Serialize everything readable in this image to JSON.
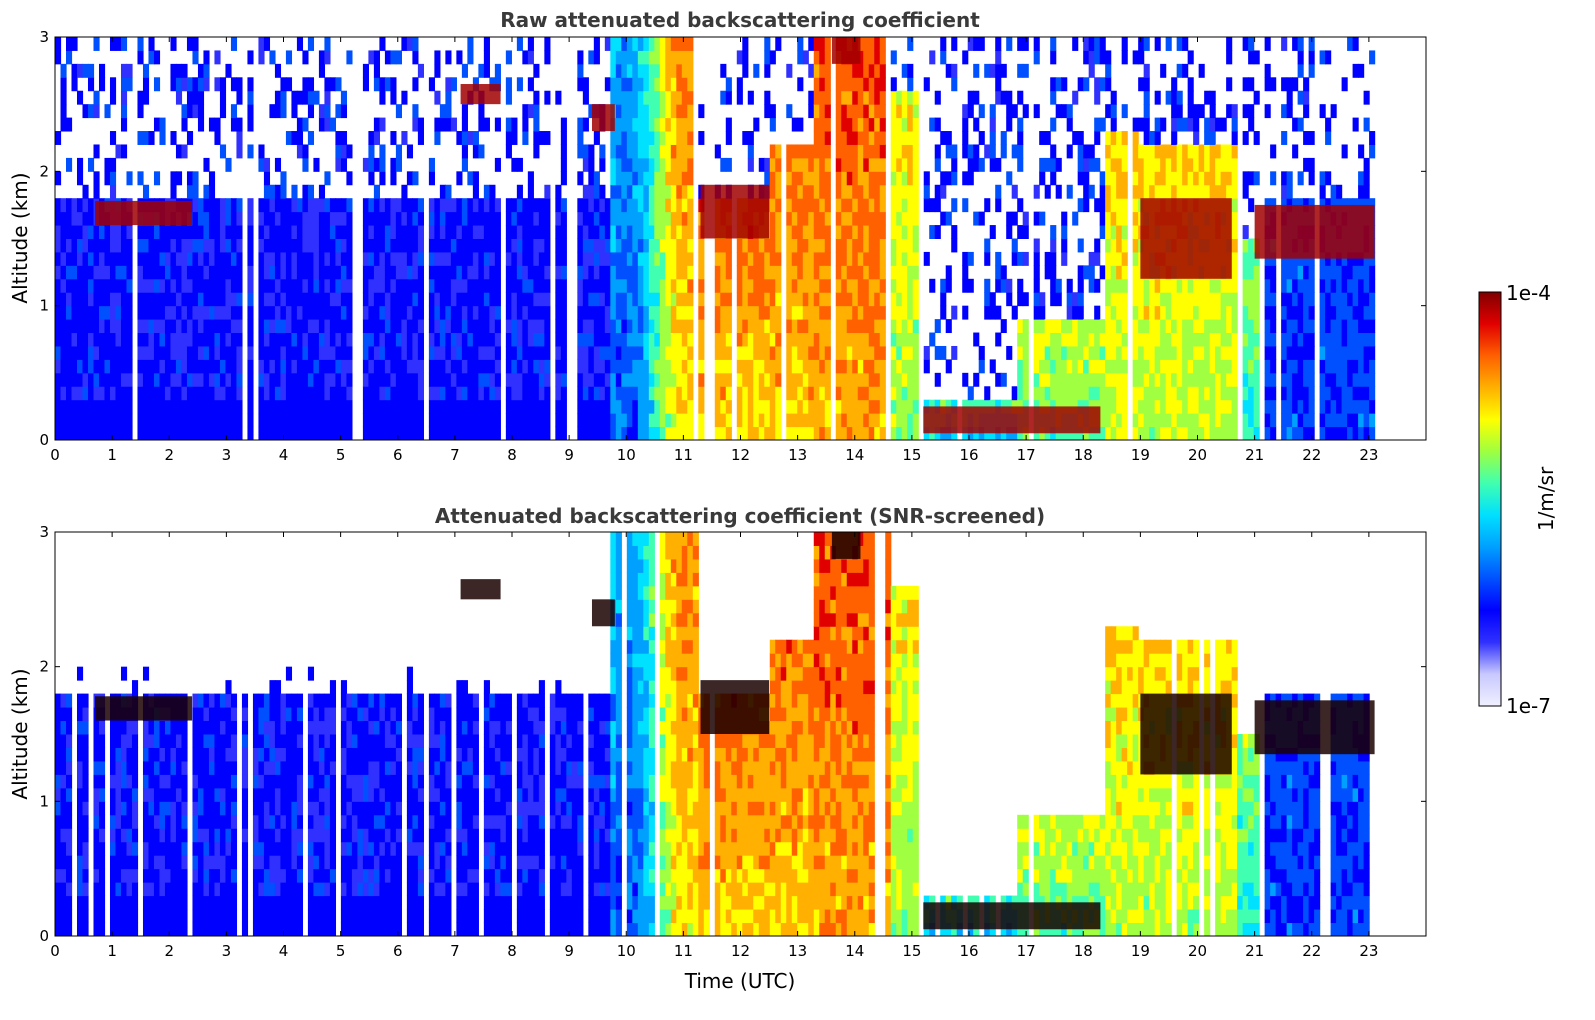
{
  "chart_data": [
    {
      "type": "heatmap",
      "title": "Raw attenuated backscattering coefficient",
      "xlabel": "",
      "ylabel": "Altitude (km)",
      "xlim": [
        0,
        24
      ],
      "ylim": [
        0,
        3
      ],
      "xticks": [
        "0",
        "1",
        "2",
        "3",
        "4",
        "5",
        "6",
        "7",
        "8",
        "9",
        "10",
        "11",
        "12",
        "13",
        "14",
        "15",
        "16",
        "17",
        "18",
        "19",
        "20",
        "21",
        "22",
        "23"
      ],
      "yticks": [
        "0",
        "1",
        "2",
        "3"
      ],
      "data_end_hour": 23.1,
      "screened": false,
      "cloud_layers": [
        {
          "start": 0.7,
          "end": 2.4,
          "base_km": 1.6,
          "top_km": 1.78
        },
        {
          "start": 7.1,
          "end": 7.8,
          "base_km": 2.5,
          "top_km": 2.65
        },
        {
          "start": 9.4,
          "end": 9.8,
          "base_km": 2.3,
          "top_km": 2.5
        },
        {
          "start": 11.3,
          "end": 12.5,
          "base_km": 1.5,
          "top_km": 1.9
        },
        {
          "start": 13.6,
          "end": 14.1,
          "base_km": 2.8,
          "top_km": 3.0
        },
        {
          "start": 15.2,
          "end": 18.3,
          "base_km": 0.05,
          "top_km": 0.25
        },
        {
          "start": 19.0,
          "end": 20.6,
          "base_km": 1.2,
          "top_km": 1.8
        },
        {
          "start": 21.0,
          "end": 23.1,
          "base_km": 1.35,
          "top_km": 1.75
        }
      ]
    },
    {
      "type": "heatmap",
      "title": "Attenuated backscattering coefficient (SNR-screened)",
      "xlabel": "Time (UTC)",
      "ylabel": "Altitude (km)",
      "xlim": [
        0,
        24
      ],
      "ylim": [
        0,
        3
      ],
      "xticks": [
        "0",
        "1",
        "2",
        "3",
        "4",
        "5",
        "6",
        "7",
        "8",
        "9",
        "10",
        "11",
        "12",
        "13",
        "14",
        "15",
        "16",
        "17",
        "18",
        "19",
        "20",
        "21",
        "22",
        "23"
      ],
      "yticks": [
        "0",
        "1",
        "2",
        "3"
      ],
      "data_end_hour": 23.1,
      "screened": true
    }
  ],
  "colorbar": {
    "label": "1/m/sr",
    "min_label": "1e-7",
    "max_label": "1e-4",
    "colormap": [
      "#f0f0ff",
      "#c8c8ff",
      "#3030ff",
      "#0000ff",
      "#0050ff",
      "#00a0ff",
      "#00e0ff",
      "#40ffb0",
      "#a0ff40",
      "#ffff00",
      "#ffb000",
      "#ff6000",
      "#e00000",
      "#800000"
    ]
  }
}
